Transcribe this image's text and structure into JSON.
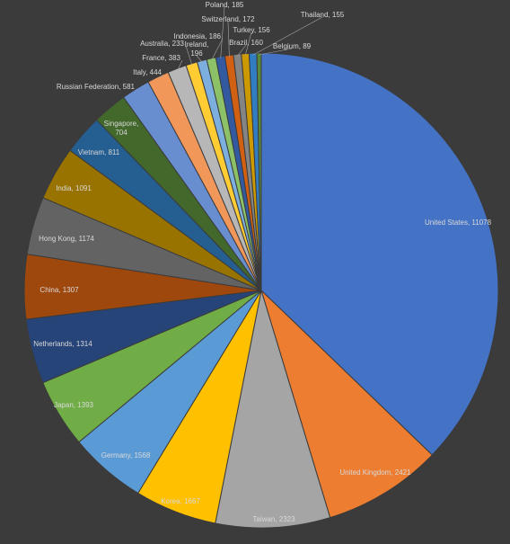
{
  "chart_data": {
    "type": "pie",
    "title": "",
    "label_format": "{category}, {value}",
    "label_color": "#d9d9d9",
    "slice_border_color": "#3b3b3b",
    "leader_line_color": "#a6a6a6",
    "background": "#3b3b3b",
    "slices": [
      {
        "category": "United States",
        "value": 11078,
        "color": "#4472c4"
      },
      {
        "category": "United Kingdom",
        "value": 2421,
        "color": "#ed7d31"
      },
      {
        "category": "Taiwan",
        "value": 2323,
        "color": "#a5a5a5"
      },
      {
        "category": "Korea",
        "value": 1667,
        "color": "#ffc000"
      },
      {
        "category": "Germany",
        "value": 1568,
        "color": "#5b9bd5"
      },
      {
        "category": "Japan",
        "value": 1393,
        "color": "#70ad47"
      },
      {
        "category": "Netherlands",
        "value": 1314,
        "color": "#264478"
      },
      {
        "category": "China",
        "value": 1307,
        "color": "#9e480e"
      },
      {
        "category": "Hong Kong",
        "value": 1174,
        "color": "#636363"
      },
      {
        "category": "India",
        "value": 1091,
        "color": "#997300"
      },
      {
        "category": "Vietnam",
        "value": 811,
        "color": "#255e91"
      },
      {
        "category": "Singapore",
        "value": 704,
        "color": "#43682b"
      },
      {
        "category": "Russian Federation",
        "value": 581,
        "color": "#698ed0"
      },
      {
        "category": "Italy",
        "value": 444,
        "color": "#f1975a"
      },
      {
        "category": "France",
        "value": 383,
        "color": "#b7b7b7"
      },
      {
        "category": "Australia",
        "value": 233,
        "color": "#ffcd33"
      },
      {
        "category": "Ireland",
        "value": 196,
        "color": "#7cafdd"
      },
      {
        "category": "Indonesia",
        "value": 186,
        "color": "#8cc168"
      },
      {
        "category": "Poland",
        "value": 185,
        "color": "#335aa1"
      },
      {
        "category": "Switzerland",
        "value": 172,
        "color": "#d26012"
      },
      {
        "category": "Brazil",
        "value": 160,
        "color": "#848484"
      },
      {
        "category": "Turkey",
        "value": 156,
        "color": "#cc9a00"
      },
      {
        "category": "Thailand",
        "value": 155,
        "color": "#327dc2"
      },
      {
        "category": "Belgium",
        "value": 89,
        "color": "#5a8a39"
      }
    ]
  }
}
